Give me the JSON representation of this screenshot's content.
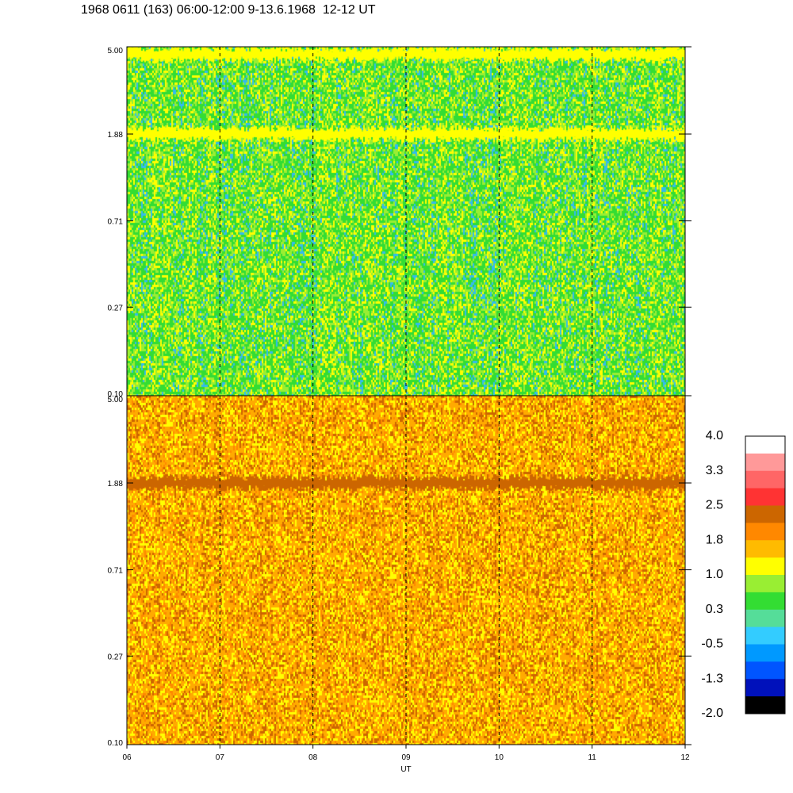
{
  "title": "1968 0611 (163) 06:00-12:00 9-13.6.1968  12-12 UT",
  "chart_data": {
    "type": "heatmap",
    "xlabel": "UT",
    "x_ticks": [
      "06",
      "07",
      "08",
      "09",
      "10",
      "11",
      "12"
    ],
    "x_range": [
      6,
      12
    ],
    "y_ticks": [
      "0.10",
      "0.27",
      "0.71",
      "1.88",
      "5.00"
    ],
    "y_range": [
      0.1,
      5.0
    ],
    "y_scale": "log",
    "panels": [
      {
        "id": "upper",
        "dominant_colors": [
          "#33dd33",
          "#99ee33",
          "#33bbee",
          "#ffff00"
        ],
        "bands": [
          {
            "y": 4.6,
            "color": "#ffff00",
            "note": ""
          },
          {
            "y": 1.88,
            "color": "#ffff00",
            "note": ""
          }
        ]
      },
      {
        "id": "lower",
        "dominant_colors": [
          "#ffaa00",
          "#ffff00",
          "#ff8800",
          "#cc6600"
        ],
        "bands": [
          {
            "y": 1.88,
            "color": "#cc6600",
            "note": ""
          }
        ]
      }
    ],
    "colorbar": {
      "labels": [
        "4.0",
        "3.3",
        "2.5",
        "1.8",
        "1.0",
        "0.3",
        "-0.5",
        "-1.3",
        "-2.0"
      ],
      "colors": [
        "#ffffff",
        "#ff9999",
        "#ff6666",
        "#ff3333",
        "#cc6600",
        "#ff8800",
        "#ffbb00",
        "#ffff00",
        "#99ee33",
        "#33dd33",
        "#55dd99",
        "#33ccff",
        "#0099ff",
        "#0055ff",
        "#0011bb",
        "#000000"
      ]
    },
    "grid": "dashed vertical lines at hourly ticks"
  }
}
